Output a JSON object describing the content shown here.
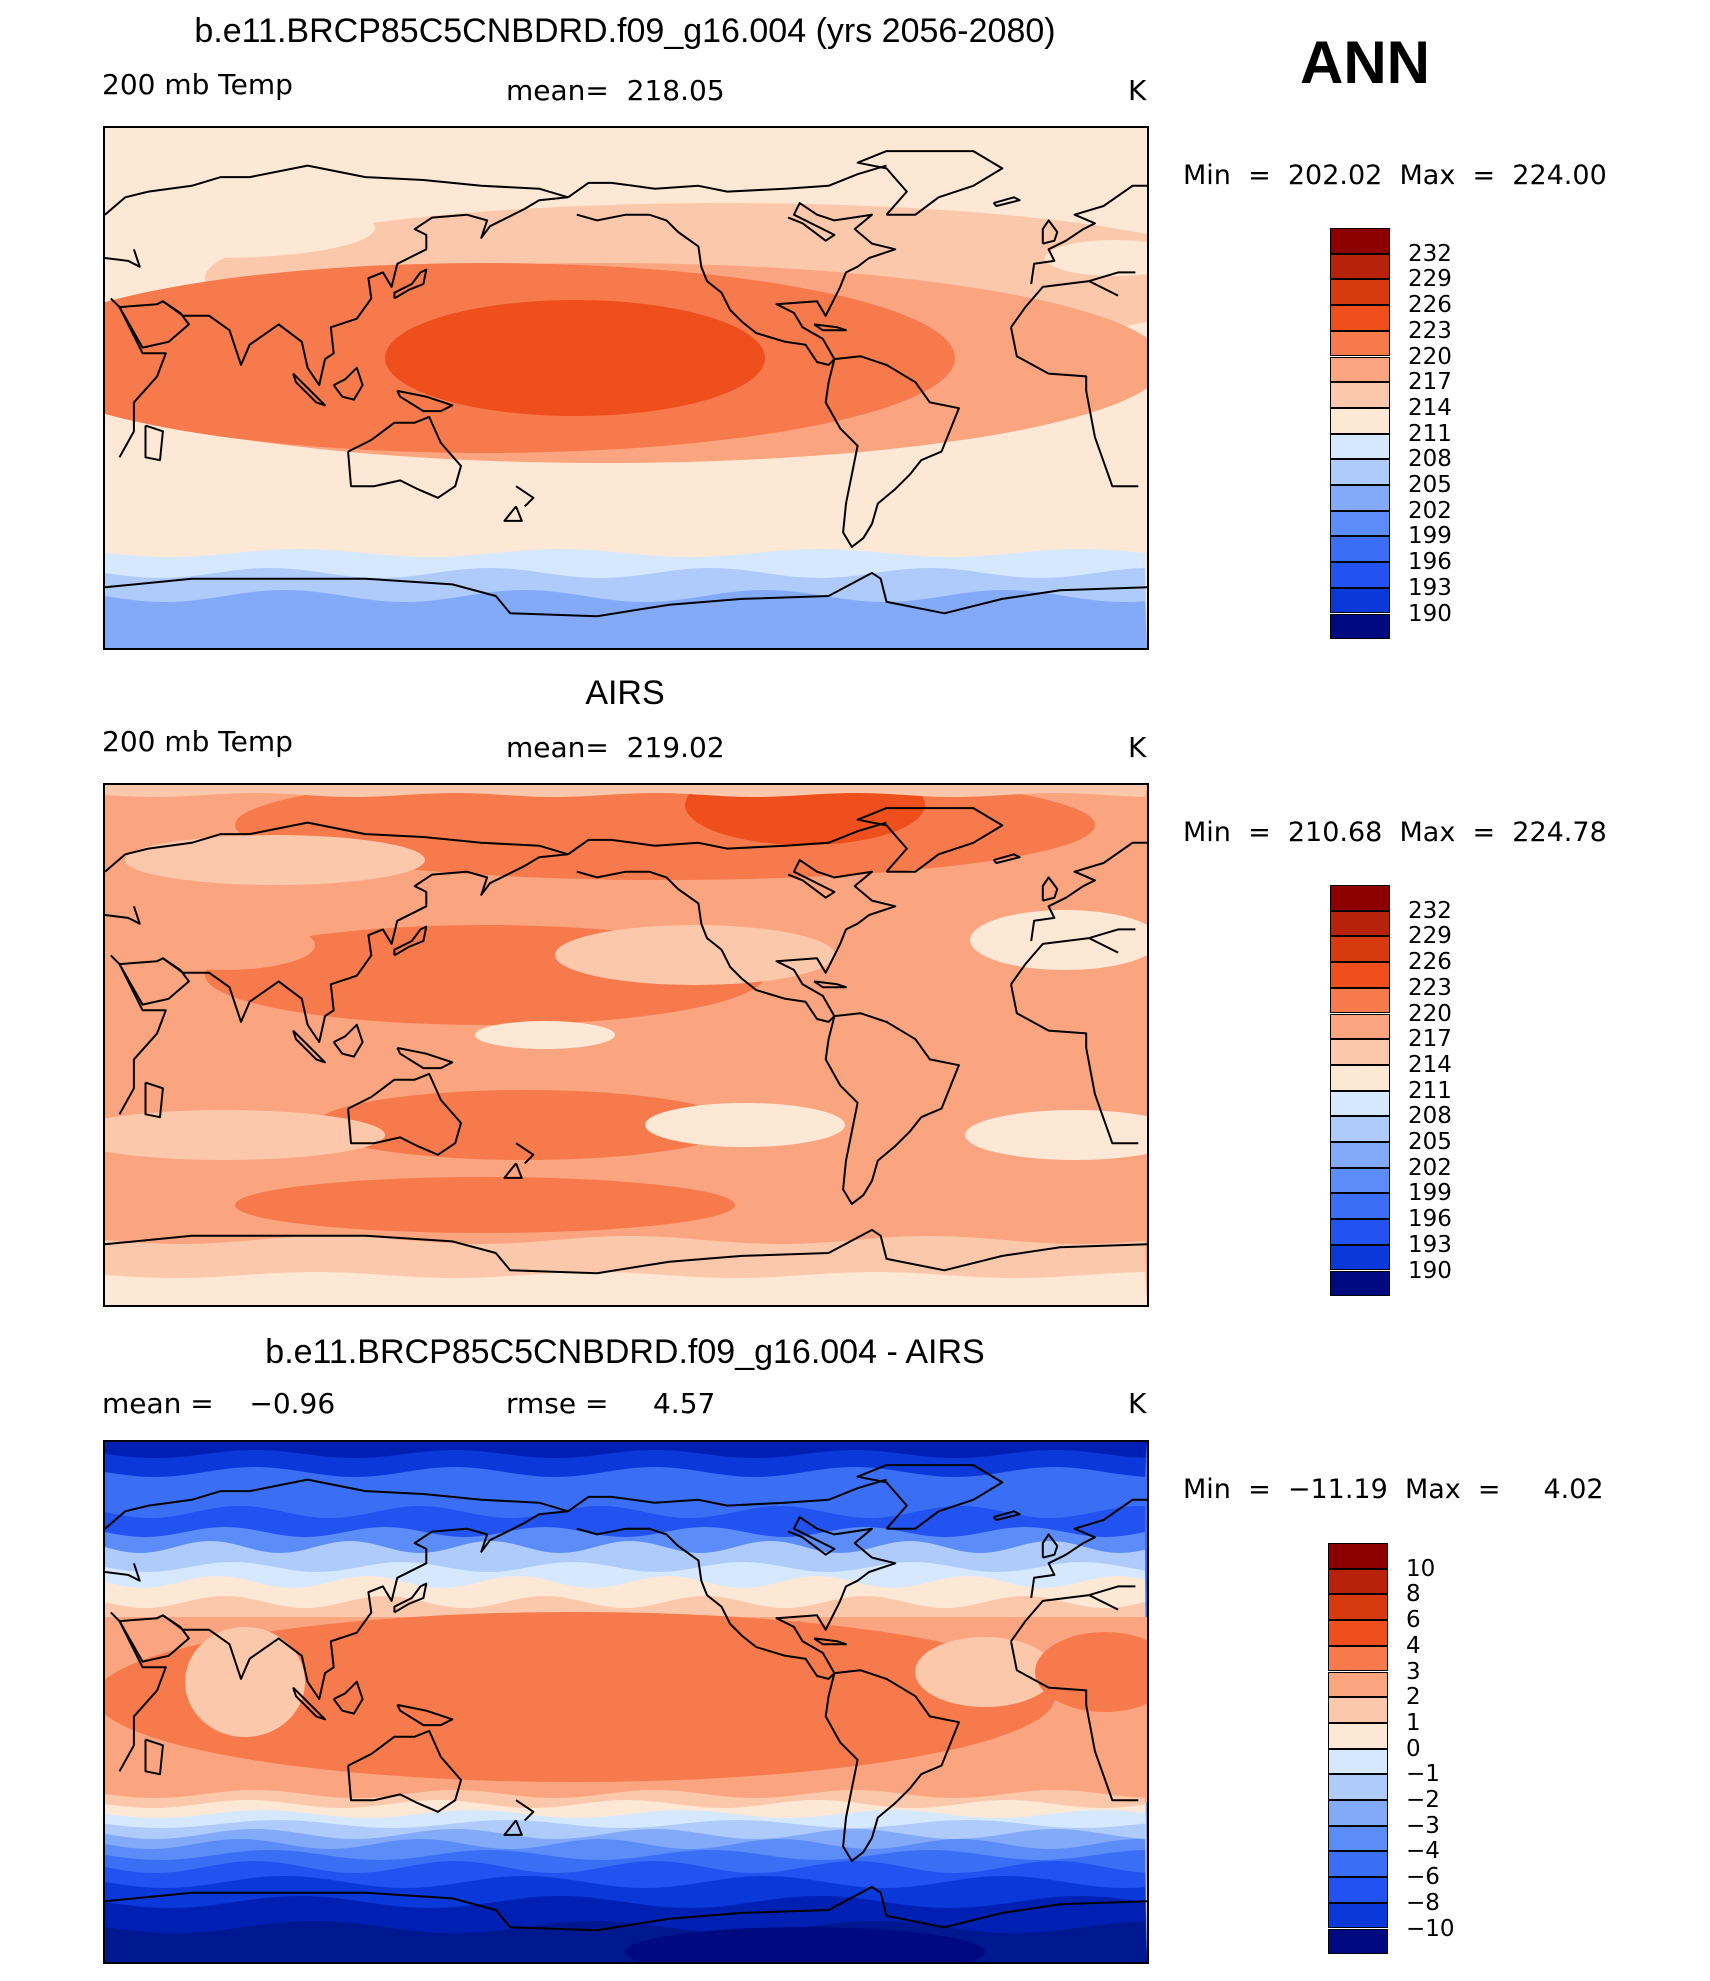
{
  "season": "ANN",
  "colors": {
    "levels_palette": [
      "#000a80",
      "#00188f",
      "#0020b3",
      "#0a38d9",
      "#2252ef",
      "#3a6ff5",
      "#5b8cf7",
      "#83aaf9",
      "#aecbfb",
      "#d6e8fd",
      "#fde8d6",
      "#fcc8ab",
      "#faa580",
      "#f77a4d",
      "#ee4f1c",
      "#d83a10",
      "#b8220a",
      "#8c0000"
    ]
  },
  "panels": [
    {
      "id": "model",
      "title": "b.e11.BRCP85C5CNBDRD.f09_g16.004 (yrs 2056-2080)",
      "left_text": "200 mb Temp",
      "mid_text": "mean=  218.05",
      "units": "K",
      "minmax": "Min  =  202.02  Max  =  224.00",
      "colorbar_labels": [
        "232",
        "229",
        "226",
        "223",
        "220",
        "217",
        "214",
        "211",
        "208",
        "205",
        "202",
        "199",
        "196",
        "193",
        "190"
      ],
      "field_type": "model"
    },
    {
      "id": "obs",
      "title": "AIRS",
      "left_text": "200 mb Temp",
      "mid_text": "mean=  219.02",
      "units": "K",
      "minmax": "Min  =  210.68  Max  =  224.78",
      "colorbar_labels": [
        "232",
        "229",
        "226",
        "223",
        "220",
        "217",
        "214",
        "211",
        "208",
        "205",
        "202",
        "199",
        "196",
        "193",
        "190"
      ],
      "field_type": "obs"
    },
    {
      "id": "diff",
      "title": "b.e11.BRCP85C5CNBDRD.f09_g16.004 - AIRS",
      "left_text": "mean =    −0.96",
      "mid_text": "rmse =     4.57",
      "units": "K",
      "minmax": "Min  =  −11.19  Max  =     4.02",
      "colorbar_labels": [
        "10",
        "8",
        "6",
        "4",
        "3",
        "2",
        "1",
        "0",
        "−1",
        "−2",
        "−3",
        "−4",
        "−6",
        "−8",
        "−10"
      ],
      "field_type": "diff"
    }
  ],
  "chart_data": [
    {
      "type": "heatmap",
      "title": "b.e11.BRCP85C5CNBDRD.f09_g16.004 (yrs 2056-2080)",
      "variable": "200 mb Temp",
      "units": "K",
      "mean": 218.05,
      "min": 202.02,
      "max": 224.0,
      "contour_levels": [
        190,
        193,
        196,
        199,
        202,
        205,
        208,
        211,
        214,
        217,
        220,
        223,
        226,
        229,
        232
      ]
    },
    {
      "type": "heatmap",
      "title": "AIRS",
      "variable": "200 mb Temp",
      "units": "K",
      "mean": 219.02,
      "min": 210.68,
      "max": 224.78,
      "contour_levels": [
        190,
        193,
        196,
        199,
        202,
        205,
        208,
        211,
        214,
        217,
        220,
        223,
        226,
        229,
        232
      ]
    },
    {
      "type": "heatmap",
      "title": "b.e11.BRCP85C5CNBDRD.f09_g16.004 - AIRS",
      "units": "K",
      "mean": -0.96,
      "rmse": 4.57,
      "min": -11.19,
      "max": 4.02,
      "contour_levels": [
        -10,
        -8,
        -6,
        -4,
        -3,
        -2,
        -1,
        0,
        1,
        2,
        3,
        4,
        6,
        8,
        10
      ]
    }
  ]
}
